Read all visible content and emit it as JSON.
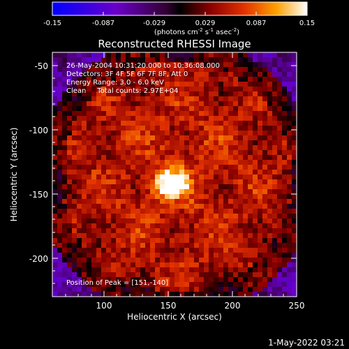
{
  "colorbar": {
    "ticks": [
      "-0.15",
      "-0.087",
      "-0.029",
      "0.029",
      "0.087",
      "0.15"
    ],
    "units_prefix": "(photons cm",
    "units_exp1": "-2",
    "units_mid": " s",
    "units_exp2": "-1",
    "units_mid2": " asec",
    "units_exp3": "-2",
    "units_suffix": ")"
  },
  "plot": {
    "title": "Reconstructed RHESSI Image",
    "xlabel": "Heliocentric X (arcsec)",
    "ylabel": "Heliocentric Y (arcsec)",
    "x_ticks": [
      "100",
      "150",
      "200",
      "250"
    ],
    "y_ticks": [
      "-50",
      "-100",
      "-150",
      "-200"
    ],
    "info_lines": [
      "26-May-2004 10:31:20.000 to 10:36:08.000",
      "Detectors: 3F 4F 5F 6F 7F 8F, Att 0",
      "Energy Range: 3.0 - 6.0 keV",
      "Clean     Total counts: 2.97E+04"
    ],
    "peak_label": "Position of Peak = [151,-140]"
  },
  "footer": {
    "timestamp": "1-May-2022 03:21"
  },
  "chart_data": {
    "type": "heatmap",
    "title": "Reconstructed RHESSI Image",
    "xlabel": "Heliocentric X (arcsec)",
    "ylabel": "Heliocentric Y (arcsec)",
    "xlim": [
      60,
      250
    ],
    "ylim": [
      -230,
      -40
    ],
    "color_range": [
      -0.15,
      0.15
    ],
    "colormap": "blue-purple-black-red-orange-yellow-white",
    "peak": [
      151,
      -140
    ],
    "peak_value": 0.15,
    "grid": false
  }
}
